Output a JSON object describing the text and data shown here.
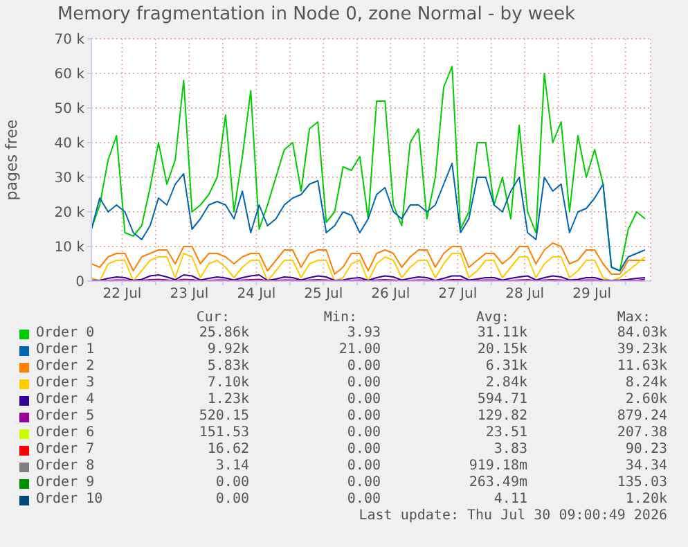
{
  "chart_data": {
    "type": "line",
    "title": "Memory fragmentation in Node 0, zone Normal - by week",
    "ylabel": "pages free",
    "x": [
      "2026-07-22T01:00",
      "2026-07-22T04:00",
      "2026-07-22T07:00",
      "2026-07-22T10:00",
      "2026-07-22T13:00",
      "2026-07-22T16:00",
      "2026-07-22T19:00",
      "2026-07-22T22:00",
      "2026-07-23T01:00",
      "2026-07-23T04:00",
      "2026-07-23T07:00",
      "2026-07-23T10:00",
      "2026-07-23T13:00",
      "2026-07-23T16:00",
      "2026-07-23T19:00",
      "2026-07-23T22:00",
      "2026-07-24T01:00",
      "2026-07-24T04:00",
      "2026-07-24T07:00",
      "2026-07-24T10:00",
      "2026-07-24T13:00",
      "2026-07-24T16:00",
      "2026-07-24T19:00",
      "2026-07-24T22:00",
      "2026-07-25T01:00",
      "2026-07-25T04:00",
      "2026-07-25T07:00",
      "2026-07-25T10:00",
      "2026-07-25T13:00",
      "2026-07-25T16:00",
      "2026-07-25T19:00",
      "2026-07-25T22:00",
      "2026-07-26T01:00",
      "2026-07-26T04:00",
      "2026-07-26T07:00",
      "2026-07-26T10:00",
      "2026-07-26T13:00",
      "2026-07-26T16:00",
      "2026-07-26T19:00",
      "2026-07-26T22:00",
      "2026-07-27T01:00",
      "2026-07-27T04:00",
      "2026-07-27T07:00",
      "2026-07-27T10:00",
      "2026-07-27T13:00",
      "2026-07-27T16:00",
      "2026-07-27T19:00",
      "2026-07-27T22:00",
      "2026-07-28T01:00",
      "2026-07-28T04:00",
      "2026-07-28T07:00",
      "2026-07-28T10:00",
      "2026-07-28T13:00",
      "2026-07-28T16:00",
      "2026-07-28T19:00",
      "2026-07-28T22:00",
      "2026-07-29T01:00",
      "2026-07-29T04:00",
      "2026-07-29T07:00",
      "2026-07-29T10:00",
      "2026-07-29T13:00",
      "2026-07-29T16:00",
      "2026-07-29T19:00",
      "2026-07-29T22:00",
      "2026-07-30T01:00",
      "2026-07-30T04:00",
      "2026-07-30T07:00"
    ],
    "series": [
      {
        "name": "Order 0",
        "color": "#00cc00",
        "values": [
          15000,
          22000,
          35000,
          42000,
          14000,
          13000,
          16000,
          27000,
          40000,
          28000,
          35000,
          58000,
          20000,
          22000,
          25000,
          30000,
          48000,
          20000,
          36000,
          55000,
          15000,
          22000,
          30000,
          38000,
          40000,
          26000,
          44000,
          46000,
          17000,
          20000,
          33000,
          32000,
          36000,
          18000,
          52000,
          52000,
          22000,
          16000,
          40000,
          44000,
          18000,
          30000,
          56000,
          62000,
          15000,
          20000,
          40000,
          40000,
          22000,
          30000,
          18000,
          45000,
          20000,
          14000,
          60000,
          40000,
          46000,
          20000,
          42000,
          30000,
          38000,
          28000,
          4000,
          3000,
          15000,
          20000,
          18000
        ]
      },
      {
        "name": "Order 1",
        "color": "#0066b3",
        "values": [
          15000,
          24000,
          20000,
          22000,
          20000,
          14000,
          12000,
          16000,
          24000,
          22000,
          28000,
          31000,
          15000,
          18000,
          22000,
          23000,
          22000,
          18000,
          26000,
          14000,
          22000,
          16000,
          18000,
          22000,
          24000,
          25000,
          28000,
          29000,
          14000,
          16000,
          20000,
          19000,
          14000,
          18000,
          25000,
          27000,
          20000,
          18000,
          22000,
          22000,
          20000,
          22000,
          28000,
          34000,
          14000,
          18000,
          30000,
          30000,
          22000,
          20000,
          26000,
          30000,
          14000,
          12000,
          30000,
          26000,
          28000,
          14000,
          20000,
          21000,
          24000,
          28000,
          4000,
          3000,
          7000,
          8000,
          9000
        ]
      },
      {
        "name": "Order 2",
        "color": "#ff8000",
        "values": [
          5000,
          4000,
          7000,
          8000,
          8000,
          3000,
          7000,
          8000,
          9000,
          9000,
          5000,
          10000,
          10000,
          5000,
          8000,
          8000,
          7000,
          5000,
          7000,
          8000,
          8000,
          3000,
          6000,
          9000,
          9000,
          4000,
          8000,
          9000,
          9000,
          2000,
          4000,
          8000,
          8000,
          3000,
          8000,
          9000,
          8000,
          4000,
          7000,
          9000,
          9000,
          4000,
          8000,
          10000,
          10000,
          4000,
          6000,
          8000,
          8000,
          5000,
          7000,
          10000,
          10000,
          5000,
          9000,
          11000,
          10000,
          5000,
          6000,
          9000,
          9000,
          5000,
          2000,
          2000,
          6000,
          6000,
          6000
        ]
      },
      {
        "name": "Order 3",
        "color": "#ffcc00",
        "values": [
          1000,
          0,
          5000,
          6000,
          6000,
          0,
          3000,
          6000,
          7000,
          7000,
          1000,
          8000,
          7000,
          1000,
          5000,
          6000,
          4000,
          1000,
          4000,
          6000,
          6000,
          0,
          3000,
          6000,
          6000,
          1000,
          5000,
          6000,
          6000,
          0,
          1000,
          5000,
          6000,
          0,
          5000,
          7000,
          6000,
          1000,
          4000,
          6000,
          6000,
          1000,
          5000,
          8000,
          8000,
          1000,
          3000,
          6000,
          6000,
          1000,
          4000,
          7000,
          7000,
          1000,
          5000,
          7000,
          7000,
          1000,
          3000,
          6000,
          6000,
          1000,
          0,
          1000,
          3000,
          5000,
          7000
        ]
      },
      {
        "name": "Order 4",
        "color": "#330099",
        "values": [
          300,
          200,
          800,
          1200,
          1000,
          200,
          500,
          1500,
          1800,
          1200,
          400,
          1800,
          1500,
          300,
          800,
          1200,
          900,
          300,
          1000,
          1500,
          1800,
          200,
          600,
          1200,
          1000,
          300,
          1000,
          1500,
          1200,
          200,
          300,
          800,
          1000,
          200,
          1000,
          1500,
          1200,
          300,
          800,
          1200,
          1000,
          200,
          800,
          1500,
          1500,
          300,
          600,
          1000,
          1000,
          300,
          800,
          1200,
          1500,
          300,
          1000,
          1500,
          1200,
          300,
          500,
          1000,
          1000,
          300,
          200,
          300,
          500,
          800,
          1000
        ]
      },
      {
        "name": "Order 5",
        "color": "#990099",
        "values": [
          100,
          100,
          200,
          300,
          300,
          100,
          200,
          400,
          500,
          300,
          100,
          500,
          400,
          100,
          200,
          300,
          300,
          100,
          300,
          400,
          500,
          100,
          200,
          300,
          300,
          100,
          300,
          400,
          300,
          100,
          100,
          200,
          300,
          100,
          300,
          400,
          300,
          100,
          200,
          300,
          300,
          100,
          200,
          400,
          400,
          100,
          200,
          300,
          300,
          100,
          200,
          300,
          400,
          100,
          300,
          400,
          300,
          100,
          200,
          300,
          300,
          100,
          100,
          100,
          200,
          200,
          500
        ]
      },
      {
        "name": "Order 6",
        "color": "#ccff00",
        "values": [
          null,
          null,
          null,
          null,
          null,
          null,
          null,
          null,
          null,
          null,
          null,
          null,
          null,
          null,
          null,
          null,
          null,
          null,
          null,
          null,
          null,
          null,
          null,
          null,
          null,
          null,
          null,
          null,
          null,
          null,
          null,
          null,
          null,
          null,
          null,
          null,
          null,
          null,
          null,
          null,
          null,
          null,
          null,
          null,
          null,
          null,
          null,
          null,
          null,
          null,
          null,
          null,
          null,
          null,
          null,
          null,
          null,
          null,
          null,
          null,
          null,
          null,
          null,
          null,
          null,
          null,
          null
        ]
      },
      {
        "name": "Order 7",
        "color": "#ff0000",
        "values": [
          null,
          null,
          null,
          null,
          null,
          null,
          null,
          null,
          null,
          null,
          null,
          null,
          null,
          null,
          null,
          null,
          null,
          null,
          null,
          null,
          null,
          null,
          null,
          null,
          null,
          null,
          null,
          null,
          null,
          null,
          null,
          null,
          null,
          null,
          null,
          null,
          null,
          null,
          null,
          null,
          null,
          null,
          null,
          null,
          null,
          null,
          null,
          null,
          null,
          null,
          null,
          null,
          null,
          null,
          null,
          null,
          null,
          null,
          null,
          null,
          null,
          null,
          null,
          null,
          null,
          null,
          null
        ]
      },
      {
        "name": "Order 8",
        "color": "#808080",
        "values": [
          null,
          null,
          null,
          null,
          null,
          null,
          null,
          null,
          null,
          null,
          null,
          null,
          null,
          null,
          null,
          null,
          null,
          null,
          null,
          null,
          null,
          null,
          null,
          null,
          null,
          null,
          null,
          null,
          null,
          null,
          null,
          null,
          null,
          null,
          null,
          null,
          null,
          null,
          null,
          null,
          null,
          null,
          null,
          null,
          null,
          null,
          null,
          null,
          null,
          null,
          null,
          null,
          null,
          null,
          null,
          null,
          null,
          null,
          null,
          null,
          null,
          null,
          null,
          null,
          null,
          null,
          null
        ]
      },
      {
        "name": "Order 9",
        "color": "#008f00",
        "values": [
          null,
          null,
          null,
          null,
          null,
          null,
          null,
          null,
          null,
          null,
          null,
          null,
          null,
          null,
          null,
          null,
          null,
          null,
          null,
          null,
          null,
          null,
          null,
          null,
          null,
          null,
          null,
          null,
          null,
          null,
          null,
          null,
          null,
          null,
          null,
          null,
          null,
          null,
          null,
          null,
          null,
          null,
          null,
          null,
          null,
          null,
          null,
          null,
          null,
          null,
          null,
          null,
          null,
          null,
          null,
          null,
          null,
          null,
          null,
          null,
          null,
          null,
          null,
          null,
          null,
          null,
          null
        ]
      },
      {
        "name": "Order 10",
        "color": "#00487d",
        "values": [
          null,
          null,
          null,
          null,
          null,
          null,
          null,
          null,
          null,
          null,
          null,
          null,
          null,
          null,
          null,
          null,
          null,
          null,
          null,
          null,
          null,
          null,
          null,
          null,
          null,
          null,
          null,
          null,
          null,
          null,
          null,
          null,
          null,
          null,
          null,
          null,
          null,
          null,
          null,
          null,
          null,
          null,
          null,
          null,
          null,
          null,
          null,
          null,
          null,
          null,
          null,
          null,
          null,
          null,
          null,
          null,
          null,
          null,
          null,
          null,
          null,
          null,
          null,
          null,
          null,
          null,
          null
        ]
      }
    ],
    "xlim": [
      "2026-07-22T01:00",
      "2026-07-30T09:00"
    ],
    "xticks": [
      {
        "value": "2026-07-22T12:00",
        "label": "22 Jul"
      },
      {
        "value": "2026-07-23T00:00",
        "label": null
      },
      {
        "value": "2026-07-23T12:00",
        "label": "23 Jul"
      },
      {
        "value": "2026-07-24T00:00",
        "label": null
      },
      {
        "value": "2026-07-24T12:00",
        "label": "24 Jul"
      },
      {
        "value": "2026-07-25T00:00",
        "label": null
      },
      {
        "value": "2026-07-25T12:00",
        "label": "25 Jul"
      },
      {
        "value": "2026-07-26T00:00",
        "label": null
      },
      {
        "value": "2026-07-26T12:00",
        "label": "26 Jul"
      },
      {
        "value": "2026-07-27T00:00",
        "label": null
      },
      {
        "value": "2026-07-27T12:00",
        "label": "27 Jul"
      },
      {
        "value": "2026-07-28T00:00",
        "label": null
      },
      {
        "value": "2026-07-28T12:00",
        "label": "28 Jul"
      },
      {
        "value": "2026-07-29T00:00",
        "label": null
      },
      {
        "value": "2026-07-29T12:00",
        "label": "29 Jul"
      },
      {
        "value": "2026-07-30T00:00",
        "label": null
      }
    ],
    "ylim": [
      0,
      70000
    ],
    "yticks": [
      0,
      {
        "value": 10000,
        "label": "10 k"
      },
      {
        "value": 20000,
        "label": "20 k"
      },
      {
        "value": 30000,
        "label": "30 k"
      },
      {
        "value": 40000,
        "label": "40 k"
      },
      {
        "value": 50000,
        "label": "50 k"
      },
      {
        "value": 60000,
        "label": "60 k"
      },
      {
        "value": 70000,
        "label": "70 k"
      }
    ],
    "grid": true,
    "legend": "bottom",
    "marker": "none",
    "line_style": "solid",
    "annotations": [
      "Cur:",
      "Min:",
      "Avg:",
      "Max:",
      "25.86k",
      "3.93",
      "31.11k",
      "84.03k",
      "9.92k",
      "21.00",
      "20.15k",
      "39.23k",
      "5.83k",
      "0.00",
      "6.31k",
      "11.63k",
      "7.10k",
      "0.00",
      "2.84k",
      "8.24k",
      "1.23k",
      "0.00",
      "594.71",
      "2.60k",
      "520.15",
      "0.00",
      "129.82",
      "879.24",
      "151.53",
      "0.00",
      "23.51",
      "207.38",
      "16.62",
      "0.00",
      "3.83",
      "90.23",
      "3.14",
      "0.00",
      "919.18m",
      "34.34",
      "0.00",
      "0.00",
      "263.49m",
      "135.03",
      "0.00",
      "0.00",
      "4.11",
      "1.20k",
      "Last update: Thu Jul 30 09:00:49 2026"
    ]
  }
}
